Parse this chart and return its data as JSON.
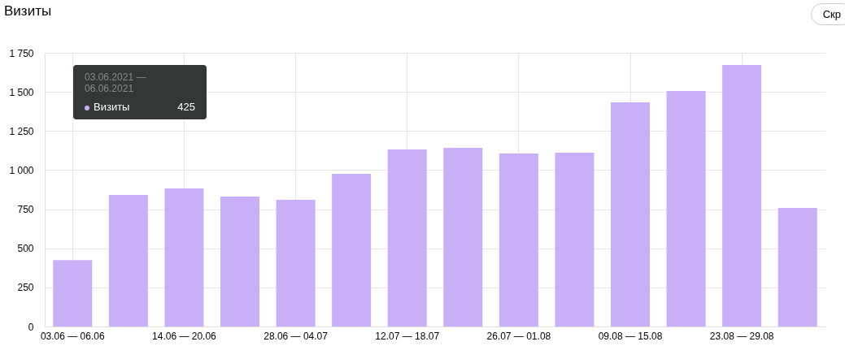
{
  "chart_data": {
    "type": "bar",
    "title": "Визиты",
    "categories": [
      "03.06 — 06.06",
      null,
      "14.06 — 20.06",
      null,
      "28.06 — 04.07",
      null,
      "12.07 — 18.07",
      null,
      "26.07 — 01.08",
      null,
      "09.08 — 15.08",
      null,
      "23.08 — 29.08",
      null
    ],
    "series": [
      {
        "name": "Визиты",
        "color": "#c9aff7",
        "values": [
          425,
          841,
          883,
          831,
          810,
          976,
          1132,
          1142,
          1106,
          1111,
          1433,
          1506,
          1672,
          758
        ]
      }
    ],
    "ylim": [
      0,
      1750
    ],
    "yticks": [
      0,
      250,
      500,
      750,
      {
        "value": 1000,
        "label": "1 000"
      },
      {
        "value": 1250,
        "label": "1 250"
      },
      {
        "value": 1500,
        "label": "1 500"
      },
      {
        "value": 1750,
        "label": "1 750"
      }
    ],
    "grid": true,
    "annotations": [
      "03.06.2021 — 06.06.2021",
      "425",
      "Скр"
    ]
  }
}
